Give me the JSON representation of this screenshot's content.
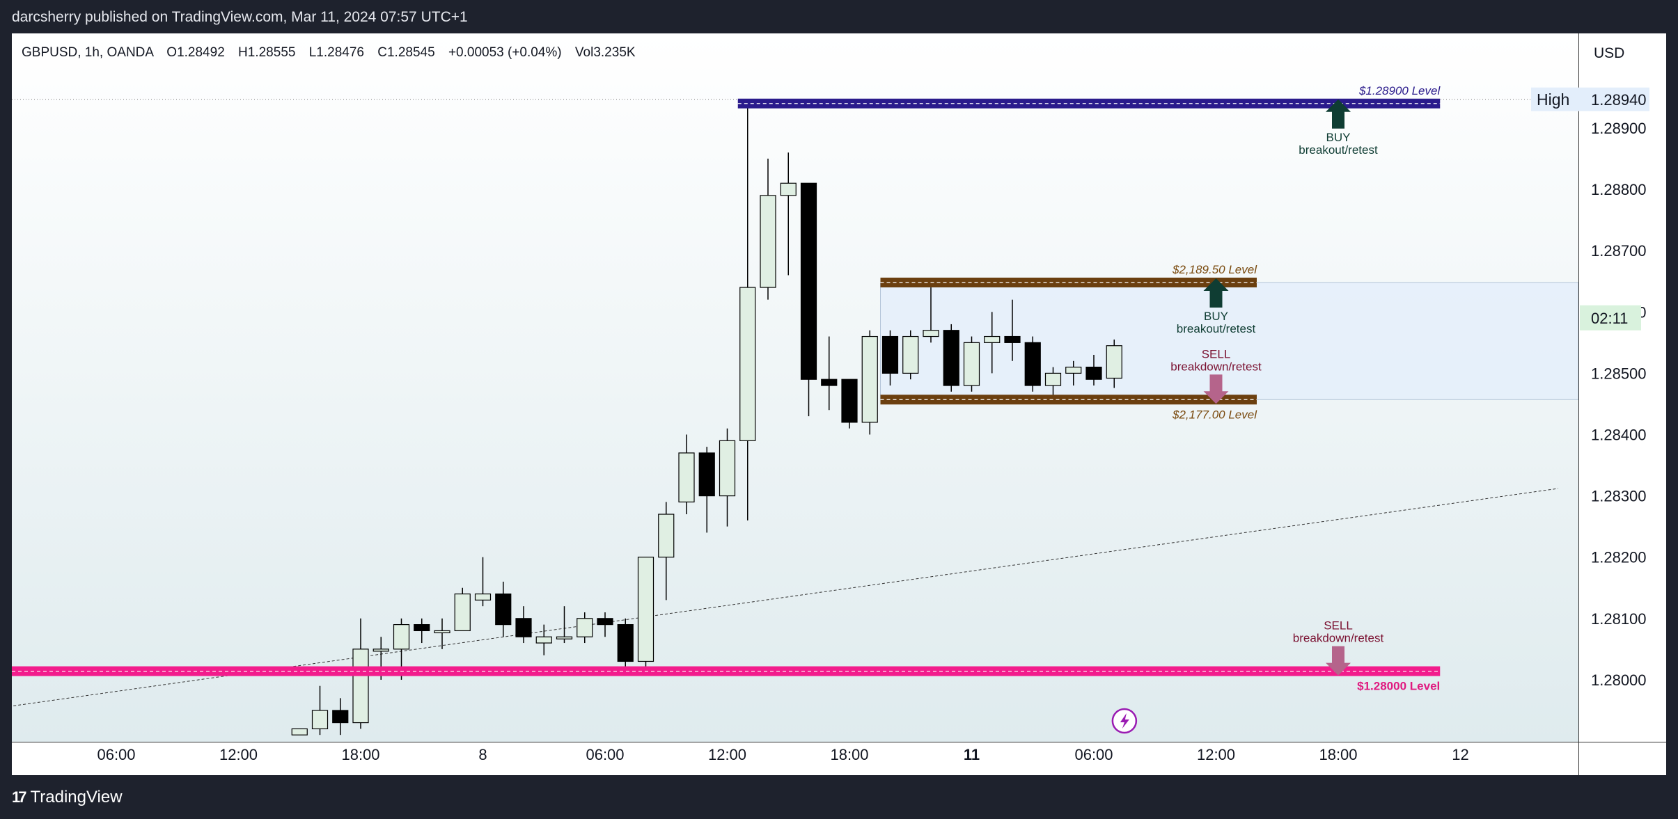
{
  "header": {
    "published_by": "darcsherry published on TradingView.com, Mar 11, 2024 07:57 UTC+1"
  },
  "footer": {
    "brand": "TradingView",
    "logo_glyph": "17"
  },
  "chart_data": {
    "type": "candlestick",
    "legend": {
      "symbol": "GBPUSD, 1h, OANDA",
      "open": "O1.28492",
      "high": "H1.28555",
      "low": "L1.28476",
      "close": "C1.28545",
      "change": "+0.00053 (+0.04%)",
      "volume": "Vol3.235K"
    },
    "currency_label": "USD",
    "y_axis": {
      "range": [
        1.2791,
        1.2897
      ],
      "ticks": [
        "1.28900",
        "1.28800",
        "1.28700",
        "1.28600",
        "1.28500",
        "1.28400",
        "1.28300",
        "1.28200",
        "1.28100",
        "1.28000"
      ],
      "tick_values": [
        1.289,
        1.288,
        1.287,
        1.286,
        1.285,
        1.284,
        1.283,
        1.282,
        1.281,
        1.28
      ]
    },
    "x_axis": {
      "ticks": [
        {
          "label": "06:00",
          "hour": 6
        },
        {
          "label": "12:00",
          "hour": 12
        },
        {
          "label": "18:00",
          "hour": 18
        },
        {
          "label": "8",
          "hour": 24
        },
        {
          "label": "06:00",
          "hour": 30
        },
        {
          "label": "12:00",
          "hour": 36
        },
        {
          "label": "18:00",
          "hour": 42
        },
        {
          "label": "11",
          "hour": 48,
          "bold": true
        },
        {
          "label": "06:00",
          "hour": 54
        },
        {
          "label": "12:00",
          "hour": 60
        },
        {
          "label": "18:00",
          "hour": 66
        },
        {
          "label": "12",
          "hour": 72
        }
      ]
    },
    "candles": [
      {
        "hour": 15,
        "o": 1.2791,
        "h": 1.2792,
        "l": 1.2791,
        "c": 1.2792
      },
      {
        "hour": 16,
        "o": 1.2792,
        "h": 1.2799,
        "l": 1.2791,
        "c": 1.2795
      },
      {
        "hour": 17,
        "o": 1.2795,
        "h": 1.2797,
        "l": 1.2791,
        "c": 1.2793
      },
      {
        "hour": 18,
        "o": 1.2793,
        "h": 1.281,
        "l": 1.2792,
        "c": 1.2805
      },
      {
        "hour": 19,
        "o": 1.2805,
        "h": 1.2807,
        "l": 1.28,
        "c": 1.2805
      },
      {
        "hour": 20,
        "o": 1.2805,
        "h": 1.281,
        "l": 1.28,
        "c": 1.2809
      },
      {
        "hour": 21,
        "o": 1.2809,
        "h": 1.281,
        "l": 1.2806,
        "c": 1.2808
      },
      {
        "hour": 22,
        "o": 1.2808,
        "h": 1.281,
        "l": 1.2805,
        "c": 1.2808
      },
      {
        "hour": 23,
        "o": 1.2808,
        "h": 1.2815,
        "l": 1.2808,
        "c": 1.2814
      },
      {
        "hour": 24,
        "o": 1.2813,
        "h": 1.282,
        "l": 1.2812,
        "c": 1.2814
      },
      {
        "hour": 25,
        "o": 1.2814,
        "h": 1.2816,
        "l": 1.2807,
        "c": 1.2809
      },
      {
        "hour": 26,
        "o": 1.281,
        "h": 1.2812,
        "l": 1.2806,
        "c": 1.2807
      },
      {
        "hour": 27,
        "o": 1.2806,
        "h": 1.2809,
        "l": 1.2804,
        "c": 1.2807
      },
      {
        "hour": 28,
        "o": 1.2807,
        "h": 1.2812,
        "l": 1.2806,
        "c": 1.2807
      },
      {
        "hour": 29,
        "o": 1.2807,
        "h": 1.2811,
        "l": 1.2806,
        "c": 1.281
      },
      {
        "hour": 30,
        "o": 1.281,
        "h": 1.2811,
        "l": 1.2807,
        "c": 1.2809
      },
      {
        "hour": 31,
        "o": 1.2809,
        "h": 1.281,
        "l": 1.2801,
        "c": 1.2803
      },
      {
        "hour": 32,
        "o": 1.2803,
        "h": 1.282,
        "l": 1.2801,
        "c": 1.282
      },
      {
        "hour": 33,
        "o": 1.282,
        "h": 1.2829,
        "l": 1.2813,
        "c": 1.2827
      },
      {
        "hour": 34,
        "o": 1.2829,
        "h": 1.284,
        "l": 1.2827,
        "c": 1.2837
      },
      {
        "hour": 35,
        "o": 1.2837,
        "h": 1.2838,
        "l": 1.2824,
        "c": 1.283
      },
      {
        "hour": 36,
        "o": 1.283,
        "h": 1.2841,
        "l": 1.2825,
        "c": 1.2839
      },
      {
        "hour": 37,
        "o": 1.2839,
        "h": 1.2894,
        "l": 1.2826,
        "c": 1.2864
      },
      {
        "hour": 38,
        "o": 1.2864,
        "h": 1.2885,
        "l": 1.2862,
        "c": 1.2879
      },
      {
        "hour": 39,
        "o": 1.2879,
        "h": 1.2886,
        "l": 1.2866,
        "c": 1.2881
      },
      {
        "hour": 40,
        "o": 1.2881,
        "h": 1.2881,
        "l": 1.2843,
        "c": 1.2849
      },
      {
        "hour": 41,
        "o": 1.2849,
        "h": 1.2856,
        "l": 1.2844,
        "c": 1.2848
      },
      {
        "hour": 42,
        "o": 1.2849,
        "h": 1.2849,
        "l": 1.2841,
        "c": 1.2842
      },
      {
        "hour": 43,
        "o": 1.2842,
        "h": 1.2857,
        "l": 1.284,
        "c": 1.2856
      },
      {
        "hour": 44,
        "o": 1.2856,
        "h": 1.2857,
        "l": 1.2848,
        "c": 1.285
      },
      {
        "hour": 45,
        "o": 1.285,
        "h": 1.2857,
        "l": 1.2849,
        "c": 1.2856
      },
      {
        "hour": 46,
        "o": 1.2856,
        "h": 1.2864,
        "l": 1.2855,
        "c": 1.2857
      },
      {
        "hour": 47,
        "o": 1.2857,
        "h": 1.2858,
        "l": 1.2847,
        "c": 1.2848
      },
      {
        "hour": 48,
        "o": 1.2848,
        "h": 1.2856,
        "l": 1.2847,
        "c": 1.2855
      },
      {
        "hour": 49,
        "o": 1.2855,
        "h": 1.286,
        "l": 1.285,
        "c": 1.2856
      },
      {
        "hour": 50,
        "o": 1.2856,
        "h": 1.2862,
        "l": 1.2852,
        "c": 1.2855
      },
      {
        "hour": 51,
        "o": 1.2855,
        "h": 1.2856,
        "l": 1.2847,
        "c": 1.2848
      },
      {
        "hour": 52,
        "o": 1.2848,
        "h": 1.2851,
        "l": 1.2846,
        "c": 1.285
      },
      {
        "hour": 53,
        "o": 1.285,
        "h": 1.2852,
        "l": 1.2848,
        "c": 1.2851
      },
      {
        "hour": 54,
        "o": 1.2851,
        "h": 1.2853,
        "l": 1.2848,
        "c": 1.2849
      },
      {
        "hour": 55,
        "o": 1.28492,
        "h": 1.28555,
        "l": 1.28476,
        "c": 1.28545
      }
    ],
    "levels": [
      {
        "price": 1.2894,
        "label": "$1.28900 Level",
        "color": "#2a1b8c",
        "start_hour": 37,
        "end_hour": 71,
        "text_color": "#2a1b8c"
      },
      {
        "price": 1.28648,
        "label": "$2,189.50 Level",
        "color": "#6b3f0f",
        "start_hour": 44,
        "end_hour": 62,
        "text_color": "#7a4a0f"
      },
      {
        "price": 1.28457,
        "label": "$2,177.00 Level",
        "color": "#6b3f0f",
        "start_hour": 44,
        "end_hour": 62,
        "text_color": "#7a4a0f"
      },
      {
        "price": 1.28014,
        "label": "$1.28000 Level",
        "color": "#f21c8c",
        "start_hour": 0,
        "end_hour": 71,
        "text_color": "#e01a80"
      }
    ],
    "range_box": {
      "top": 1.28648,
      "bottom": 1.28457,
      "start_hour": 44,
      "color": "#e3eefb"
    },
    "annotations": [
      {
        "type": "buy",
        "hour": 66,
        "price": 1.2894,
        "line1": "BUY",
        "line2": "breakout/retest",
        "color": "#0f3d33"
      },
      {
        "type": "buy",
        "hour": 60,
        "price": 1.28648,
        "line1": "BUY",
        "line2": "breakout/retest",
        "color": "#0f3d33"
      },
      {
        "type": "sell",
        "hour": 60,
        "price": 1.28457,
        "line1": "SELL",
        "line2": "breakdown/retest",
        "color": "#7a1030"
      },
      {
        "type": "sell",
        "hour": 66,
        "price": 1.28014,
        "line1": "SELL",
        "line2": "breakdown/retest",
        "color": "#7a1030"
      }
    ],
    "trendline": {
      "start": {
        "hour": 0,
        "price": 1.27953
      },
      "end": {
        "hour": 76.8,
        "price": 1.28312
      }
    },
    "high_marker": {
      "label": "High",
      "value": "1.28940",
      "price": 1.2894
    },
    "countdown": {
      "value": "02:11",
      "price": 1.28545,
      "color": "#d9f2dd"
    },
    "event_icon": "lightning-icon",
    "colors": {
      "up_fill": "#e0efe3",
      "down_fill": "#000000",
      "wick": "#000000"
    }
  }
}
